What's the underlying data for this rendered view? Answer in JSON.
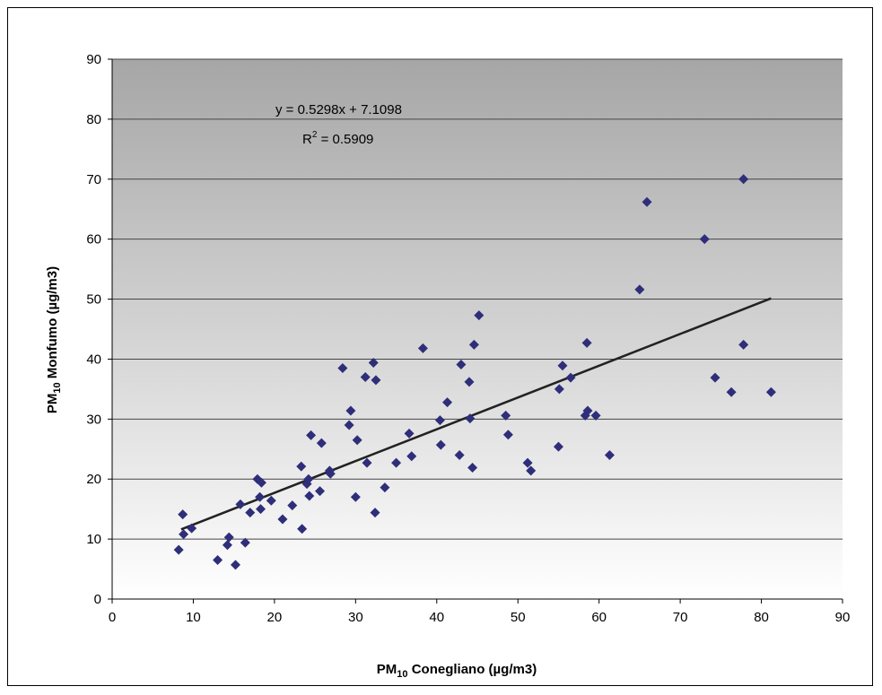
{
  "chart_data": {
    "type": "scatter",
    "title": "",
    "xlabel": {
      "prefix": "PM",
      "sub": "10",
      "suffix": " Conegliano (µg/m3)"
    },
    "ylabel": {
      "prefix": "PM",
      "sub": "10",
      "suffix": " Monfumo (µg/m3)"
    },
    "xlim": [
      0,
      90
    ],
    "ylim": [
      0,
      90
    ],
    "xticks": [
      0,
      10,
      20,
      30,
      40,
      50,
      60,
      70,
      80,
      90
    ],
    "yticks": [
      0,
      10,
      20,
      30,
      40,
      50,
      60,
      70,
      80,
      90
    ],
    "grid": "horizontal",
    "legend": "none",
    "colors": {
      "marker": "#2e2e7a",
      "trendline": "#222222",
      "plot_bg_top": "#a6a6a6",
      "plot_bg_bottom": "#ffffff",
      "gridline": "#444444"
    },
    "annotation": {
      "equation": "y = 0.5298x + 7.1098",
      "r2_label": "R",
      "r2_sup": "2",
      "r2_value": " = 0.5909"
    },
    "trendline": {
      "slope": 0.5298,
      "intercept": 7.1098,
      "x_range": [
        8.5,
        81.2
      ]
    },
    "points": [
      [
        8.2,
        8.2
      ],
      [
        8.7,
        14.1
      ],
      [
        8.8,
        10.8
      ],
      [
        9.8,
        11.8
      ],
      [
        13.0,
        6.5
      ],
      [
        14.2,
        9.0
      ],
      [
        14.4,
        10.3
      ],
      [
        15.2,
        5.7
      ],
      [
        15.8,
        15.8
      ],
      [
        16.4,
        9.4
      ],
      [
        17.0,
        14.4
      ],
      [
        17.9,
        20.0
      ],
      [
        18.2,
        17.0
      ],
      [
        18.3,
        15.0
      ],
      [
        18.4,
        19.4
      ],
      [
        19.6,
        16.4
      ],
      [
        21.0,
        13.3
      ],
      [
        22.2,
        15.6
      ],
      [
        23.3,
        22.1
      ],
      [
        23.4,
        11.7
      ],
      [
        24.0,
        19.2
      ],
      [
        24.2,
        20.0
      ],
      [
        24.3,
        17.2
      ],
      [
        24.5,
        27.3
      ],
      [
        25.6,
        18.0
      ],
      [
        25.8,
        26.0
      ],
      [
        26.8,
        21.4
      ],
      [
        26.9,
        20.9
      ],
      [
        28.4,
        38.5
      ],
      [
        29.2,
        29.0
      ],
      [
        29.4,
        31.4
      ],
      [
        30.0,
        17.0
      ],
      [
        30.2,
        26.5
      ],
      [
        31.2,
        37.0
      ],
      [
        31.4,
        22.7
      ],
      [
        32.2,
        39.4
      ],
      [
        32.4,
        14.4
      ],
      [
        32.5,
        36.5
      ],
      [
        33.6,
        18.6
      ],
      [
        35.0,
        22.7
      ],
      [
        36.6,
        27.6
      ],
      [
        36.9,
        23.8
      ],
      [
        38.3,
        41.8
      ],
      [
        40.4,
        29.8
      ],
      [
        40.5,
        25.7
      ],
      [
        41.3,
        32.8
      ],
      [
        42.8,
        24.0
      ],
      [
        43.0,
        39.1
      ],
      [
        44.0,
        36.2
      ],
      [
        44.1,
        30.1
      ],
      [
        44.4,
        21.9
      ],
      [
        44.6,
        42.4
      ],
      [
        45.2,
        47.3
      ],
      [
        48.5,
        30.6
      ],
      [
        48.8,
        27.4
      ],
      [
        51.2,
        22.7
      ],
      [
        51.6,
        21.4
      ],
      [
        55.0,
        25.4
      ],
      [
        55.1,
        35.0
      ],
      [
        55.5,
        38.9
      ],
      [
        56.5,
        36.9
      ],
      [
        58.3,
        30.6
      ],
      [
        58.5,
        42.7
      ],
      [
        58.6,
        31.4
      ],
      [
        59.6,
        30.6
      ],
      [
        61.3,
        24.0
      ],
      [
        65.0,
        51.6
      ],
      [
        65.9,
        66.2
      ],
      [
        73.0,
        60.0
      ],
      [
        74.3,
        36.9
      ],
      [
        76.3,
        34.5
      ],
      [
        77.8,
        70.0
      ],
      [
        77.8,
        42.4
      ],
      [
        81.2,
        34.5
      ]
    ]
  }
}
